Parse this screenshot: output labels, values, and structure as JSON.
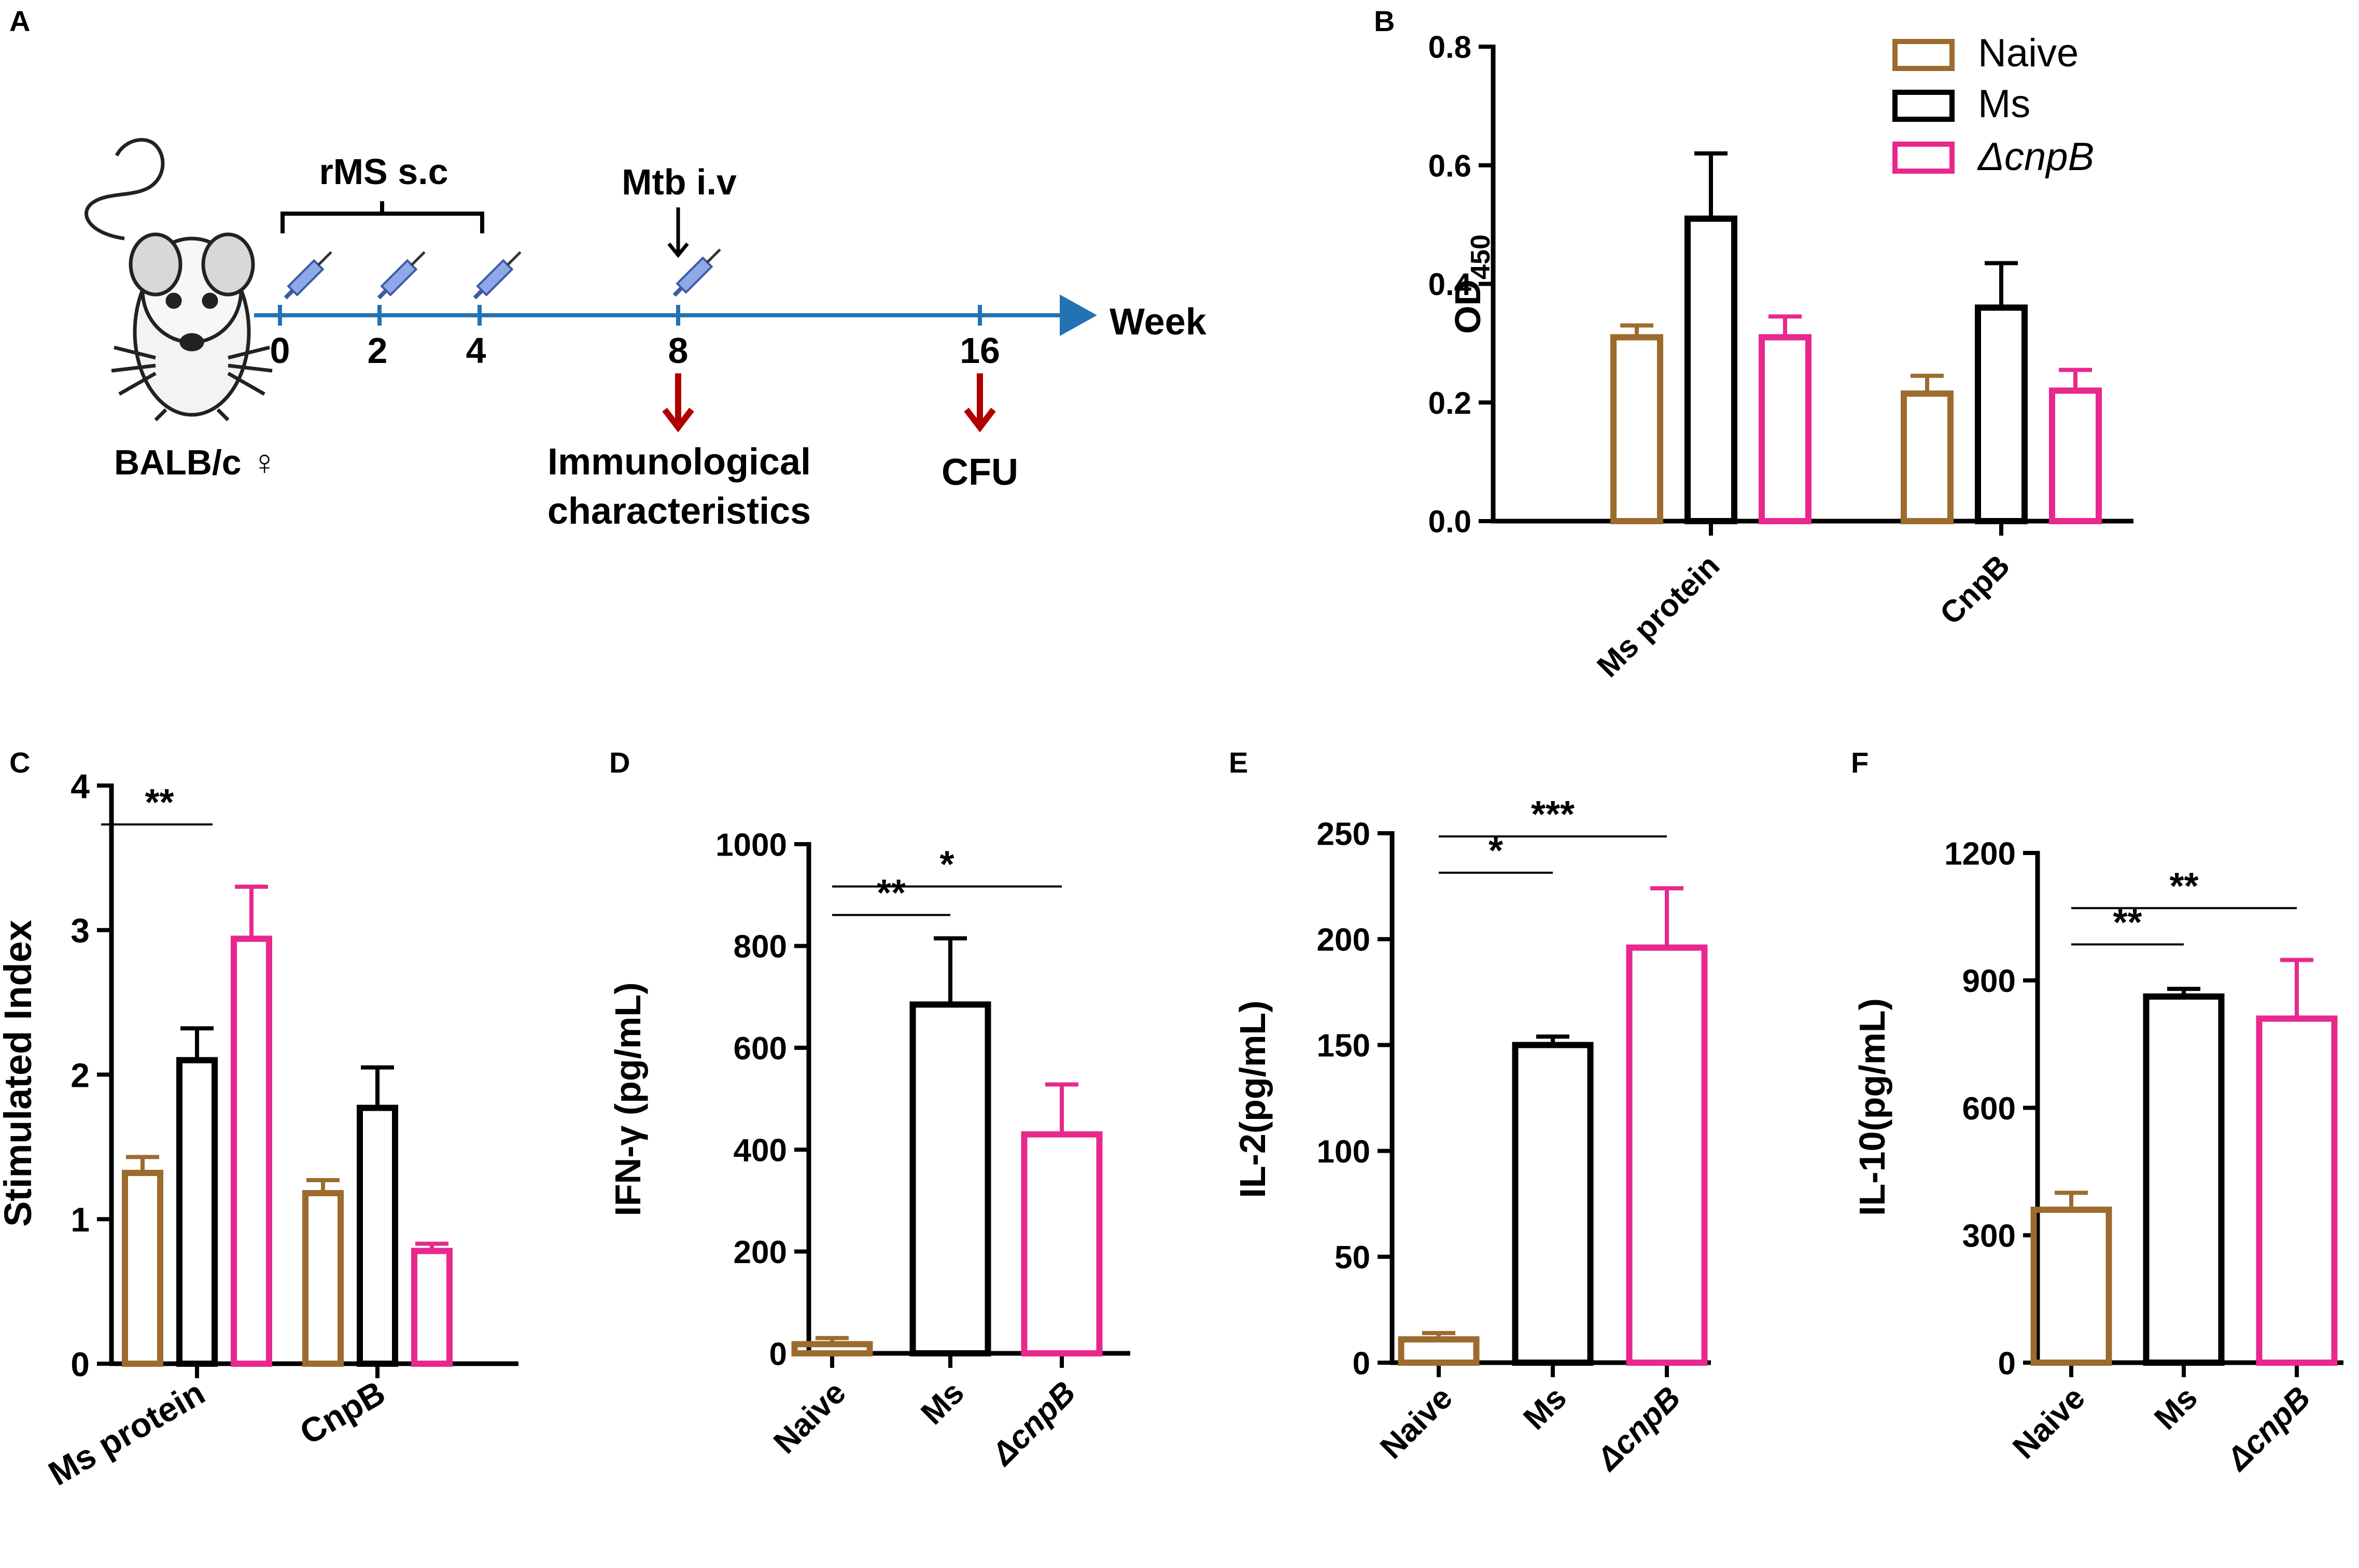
{
  "colors": {
    "naive": "#9C6B2E",
    "ms": "#000000",
    "cnpb": "#E8288C",
    "timeline": "#2272B4",
    "red_arrow": "#B00000"
  },
  "legend": {
    "naive": "Naive",
    "ms": "Ms",
    "cnpb": "ΔcnpB"
  },
  "panel_a": {
    "letter": "A",
    "mouse_label": "BALB/c ♀",
    "rms_label": "rMS s.c",
    "mtb_label": "Mtb i.v",
    "weeks": [
      "0",
      "2",
      "4",
      "8",
      "16"
    ],
    "week_label": "Week",
    "immuno_line1": "Immunological",
    "immuno_line2": "characteristics",
    "cfu_label": "CFU",
    "icons": [
      "mouse-icon",
      "syringe-icon"
    ]
  },
  "chart_data": [
    {
      "id": "B",
      "type": "bar",
      "letter": "B",
      "ylabel": "OD",
      "ylabel_sub": "450",
      "ylim": [
        0,
        0.8
      ],
      "yticks": [
        "0.0",
        "0.2",
        "0.4",
        "0.6",
        "0.8"
      ],
      "categories": [
        "Ms protein",
        "CnpB"
      ],
      "series": [
        {
          "name": "Naive",
          "values": [
            0.31,
            0.215
          ],
          "errors": [
            0.02,
            0.03
          ]
        },
        {
          "name": "Ms",
          "values": [
            0.51,
            0.36
          ],
          "errors": [
            0.11,
            0.075
          ]
        },
        {
          "name": "ΔcnpB",
          "values": [
            0.31,
            0.22
          ],
          "errors": [
            0.035,
            0.035
          ]
        }
      ],
      "significance": []
    },
    {
      "id": "C",
      "type": "bar",
      "letter": "C",
      "ylabel": "Stimulated Index",
      "ylim": [
        0,
        4
      ],
      "yticks": [
        "0",
        "1",
        "2",
        "3",
        "4"
      ],
      "categories": [
        "Ms protein",
        "CnpB"
      ],
      "series": [
        {
          "name": "Naive",
          "values": [
            1.32,
            1.18
          ],
          "errors": [
            0.11,
            0.09
          ]
        },
        {
          "name": "Ms",
          "values": [
            2.1,
            1.77
          ],
          "errors": [
            0.22,
            0.28
          ]
        },
        {
          "name": "ΔcnpB",
          "values": [
            2.94,
            0.78
          ],
          "errors": [
            0.36,
            0.05
          ]
        }
      ],
      "significance": [
        {
          "label": "**",
          "from": 0,
          "to": 1,
          "group": 0
        }
      ]
    },
    {
      "id": "D",
      "type": "bar",
      "letter": "D",
      "ylabel": "IFN-γ (pg/mL)",
      "ylim": [
        0,
        1000
      ],
      "yticks": [
        "0",
        "200",
        "400",
        "600",
        "800",
        "1000"
      ],
      "categories": [
        "Naive",
        "Ms",
        "ΔcnpB"
      ],
      "values": [
        18,
        685,
        430
      ],
      "errors": [
        12,
        130,
        98
      ],
      "significance": [
        {
          "label": "**",
          "from": 0,
          "to": 1
        },
        {
          "label": "*",
          "from": 0,
          "to": 2
        }
      ]
    },
    {
      "id": "E",
      "type": "bar",
      "letter": "E",
      "ylabel": "IL-2(pg/mL)",
      "ylim": [
        0,
        250
      ],
      "yticks": [
        "0",
        "50",
        "100",
        "150",
        "200",
        "250"
      ],
      "categories": [
        "Naive",
        "Ms",
        "ΔcnpB"
      ],
      "values": [
        11,
        150,
        196
      ],
      "errors": [
        3,
        4,
        28
      ],
      "significance": [
        {
          "label": "*",
          "from": 0,
          "to": 1
        },
        {
          "label": "***",
          "from": 0,
          "to": 2
        }
      ]
    },
    {
      "id": "F",
      "type": "bar",
      "letter": "F",
      "ylabel": "IL-10(pg/mL)",
      "ylim": [
        0,
        1200
      ],
      "yticks": [
        "0",
        "300",
        "600",
        "900",
        "1200"
      ],
      "categories": [
        "Naive",
        "Ms",
        "ΔcnpB"
      ],
      "values": [
        360,
        862,
        810
      ],
      "errors": [
        40,
        18,
        138
      ],
      "significance": [
        {
          "label": "**",
          "from": 0,
          "to": 1
        },
        {
          "label": "**",
          "from": 0,
          "to": 2
        }
      ]
    }
  ]
}
